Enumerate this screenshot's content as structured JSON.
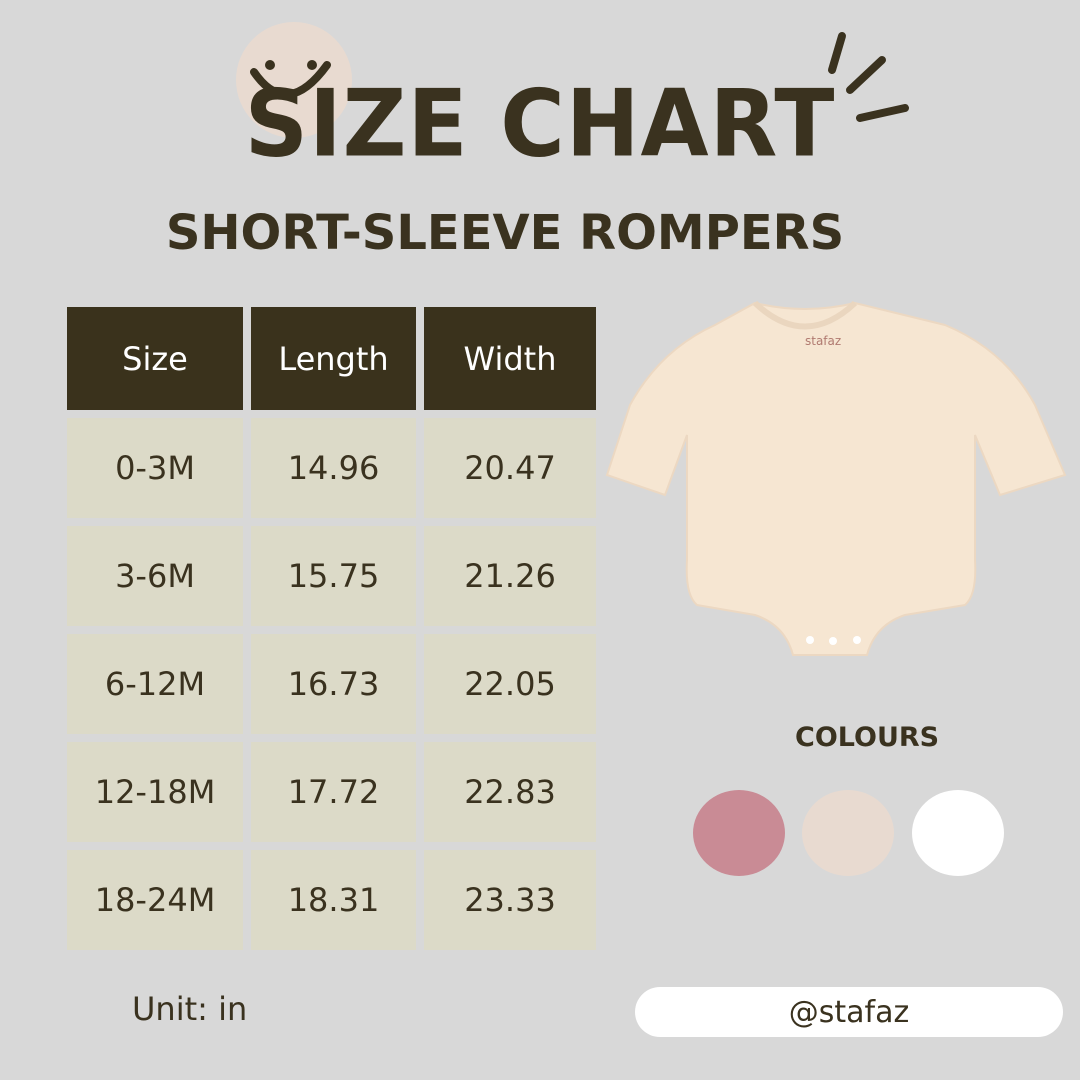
{
  "title": "SIZE CHART",
  "subtitle": "SHORT-SLEEVE ROMPERS",
  "table": {
    "headers": [
      "Size",
      "Length",
      "Width"
    ],
    "rows": [
      [
        "0-3M",
        "14.96",
        "20.47"
      ],
      [
        "3-6M",
        "15.75",
        "21.26"
      ],
      [
        "6-12M",
        "16.73",
        "22.05"
      ],
      [
        "12-18M",
        "17.72",
        "22.83"
      ],
      [
        "18-24M",
        "18.31",
        "23.33"
      ]
    ]
  },
  "product_label": "stafaz",
  "colours": {
    "title": "COLOURS",
    "swatches": [
      "#c98b95",
      "#e8dad0",
      "#ffffff"
    ]
  },
  "unit": "Unit: in",
  "handle": "@stafaz",
  "colors": {
    "background": "#d8d8d8",
    "header": "#3a321c",
    "cell": "#dcdac8",
    "text": "#3a321f"
  },
  "icons": [
    "smiley-face-icon",
    "sparkle-lines-icon"
  ]
}
